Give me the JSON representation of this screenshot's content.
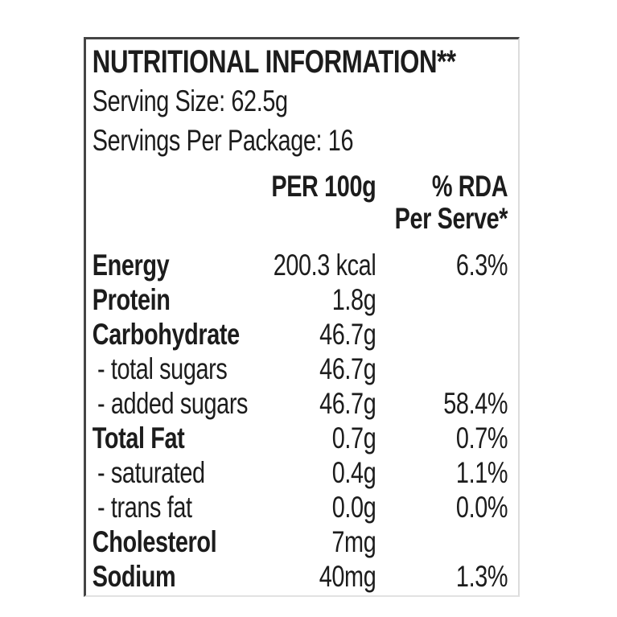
{
  "label": {
    "title": "NUTRITIONAL INFORMATION**",
    "serving_size": "Serving Size: 62.5g",
    "servings_per_package": "Servings Per Package: 16",
    "columns": {
      "per_100g": "PER 100g",
      "rda_line1": "% RDA",
      "rda_line2": "Per Serve*"
    },
    "rows": [
      {
        "name": "Energy",
        "per100g": "200.3 kcal",
        "rda": "6.3%"
      },
      {
        "name": "Protein",
        "per100g": "1.8g",
        "rda": ""
      },
      {
        "name": "Carbohydrate",
        "per100g": "46.7g",
        "rda": ""
      },
      {
        "name": "- total sugars",
        "per100g": "46.7g",
        "rda": ""
      },
      {
        "name": "- added sugars",
        "per100g": "46.7g",
        "rda": "58.4%"
      },
      {
        "name": "Total Fat",
        "per100g": "0.7g",
        "rda": "0.7%"
      },
      {
        "name": "- saturated",
        "per100g": "0.4g",
        "rda": "1.1%"
      },
      {
        "name": "- trans fat",
        "per100g": "0.0g",
        "rda": "0.0%"
      },
      {
        "name": "Cholesterol",
        "per100g": "7mg",
        "rda": ""
      },
      {
        "name": "Sodium",
        "per100g": "40mg",
        "rda": "1.3%"
      }
    ],
    "colors": {
      "text": "#1c1c1c",
      "border_dark": "#454545",
      "border_light": "#dcdcdc"
    }
  }
}
